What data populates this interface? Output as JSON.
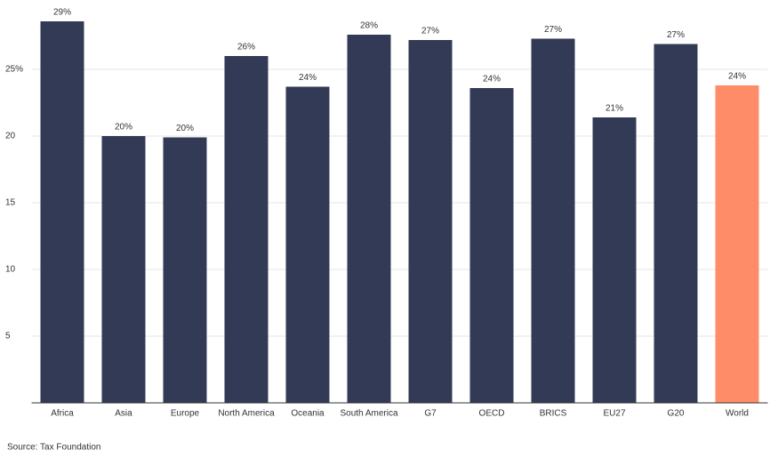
{
  "chart_data": {
    "type": "bar",
    "categories": [
      "Africa",
      "Asia",
      "Europe",
      "North America",
      "Oceania",
      "South America",
      "G7",
      "OECD",
      "BRICS",
      "EU27",
      "G20",
      "World"
    ],
    "values": [
      28.6,
      20.0,
      19.9,
      26.0,
      23.7,
      27.6,
      27.2,
      23.6,
      27.3,
      21.4,
      26.9,
      23.8
    ],
    "value_labels": [
      "29%",
      "20%",
      "20%",
      "26%",
      "24%",
      "28%",
      "27%",
      "24%",
      "27%",
      "21%",
      "27%",
      "24%"
    ],
    "colors": [
      "#323a55",
      "#323a55",
      "#323a55",
      "#323a55",
      "#323a55",
      "#323a55",
      "#323a55",
      "#323a55",
      "#323a55",
      "#323a55",
      "#323a55",
      "#ff8c69"
    ],
    "ylim": [
      0,
      30
    ],
    "yticks": [
      5,
      10,
      15,
      20,
      {
        "value": 25,
        "label": "25%"
      }
    ],
    "grid": true,
    "source": "Source: Tax Foundation"
  }
}
